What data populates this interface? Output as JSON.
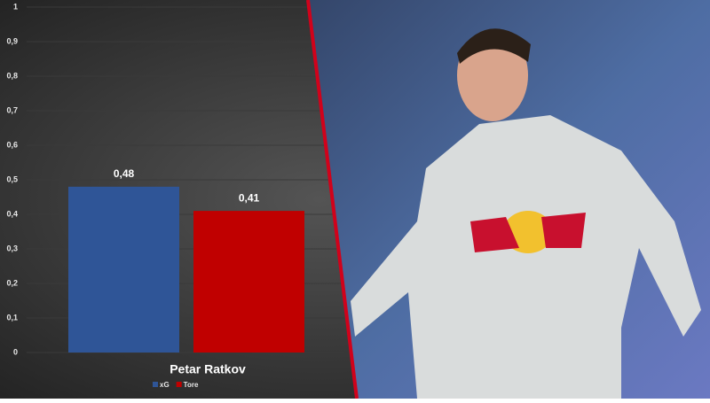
{
  "chart_data": {
    "type": "bar",
    "categories": [
      "Petar Ratkov"
    ],
    "series": [
      {
        "name": "xG",
        "color": "#2f5597",
        "values": [
          0.48
        ],
        "value_labels": [
          "0,48"
        ]
      },
      {
        "name": "Tore",
        "color": "#c00000",
        "values": [
          0.41
        ],
        "value_labels": [
          "0,41"
        ]
      }
    ],
    "ylim": [
      0,
      1
    ],
    "yticks": [
      0,
      {
        "value": 0.1,
        "label": "0,1"
      },
      {
        "value": 0.2,
        "label": "0,2"
      },
      {
        "value": 0.3,
        "label": "0,3"
      },
      {
        "value": 0.4,
        "label": "0,4"
      },
      {
        "value": 0.5,
        "label": "0,5"
      },
      {
        "value": 0.6,
        "label": "0,6"
      },
      {
        "value": 0.7,
        "label": "0,7"
      },
      {
        "value": 0.8,
        "label": "0,8"
      },
      {
        "value": 0.9,
        "label": "0,9"
      },
      1
    ],
    "grid": true
  }
}
